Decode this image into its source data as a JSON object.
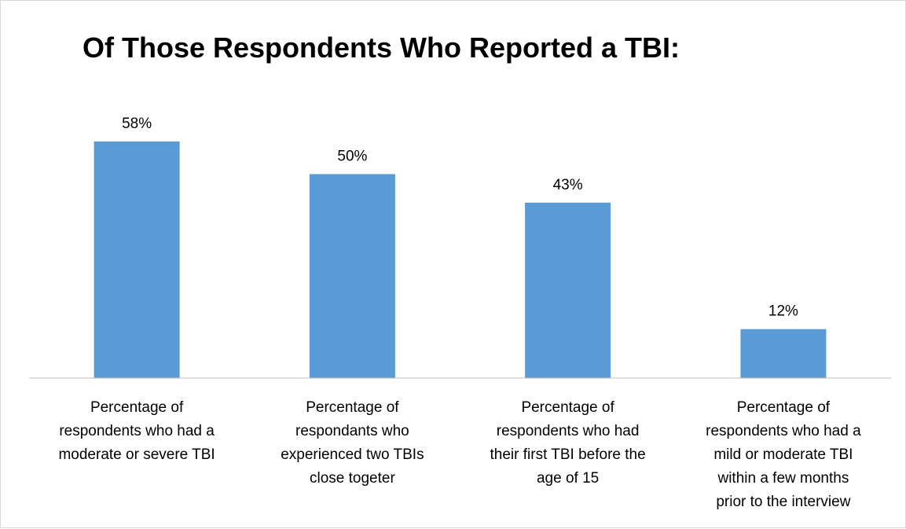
{
  "chart_data": {
    "type": "bar",
    "title": "Of Those Respondents Who Reported a TBI:",
    "categories": [
      [
        "Percentage of",
        "respondents who had a",
        "moderate or severe TBI"
      ],
      [
        "Percentage of",
        "respondants who",
        "experienced two TBIs",
        "close togeter"
      ],
      [
        "Percentage of",
        "respondents who had",
        "their first TBI before the",
        "age of 15"
      ],
      [
        "Percentage of",
        "respondents who had a",
        "mild or moderate TBI",
        "within a few months",
        "prior to the interview"
      ]
    ],
    "values": [
      58,
      50,
      43,
      12
    ],
    "value_labels": [
      "58%",
      "50%",
      "43%",
      "12%"
    ],
    "ylim": [
      0,
      60
    ],
    "grid": false,
    "legend": "none",
    "bar_color": "#5b9bd5"
  }
}
